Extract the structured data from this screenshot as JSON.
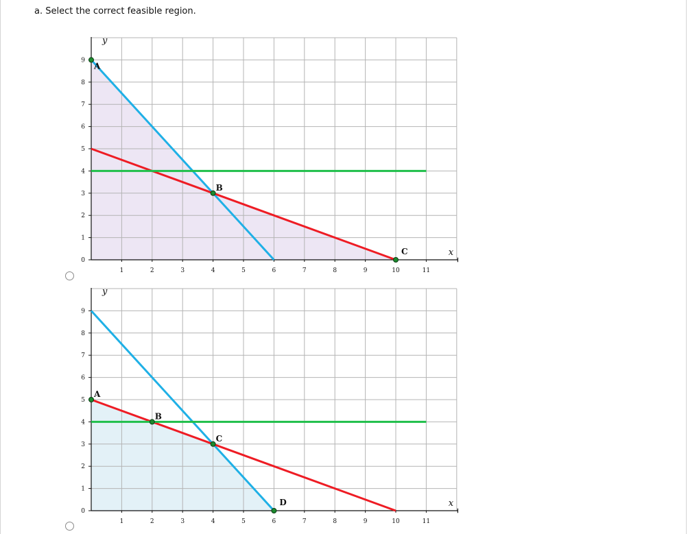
{
  "question": "a. Select the correct feasible region.",
  "colors": {
    "line_blue": "#1fb0e6",
    "line_red": "#ee1c24",
    "line_green": "#1fbf4a",
    "region_option1": "#ede6f4",
    "region_option2": "#e3f1f7",
    "grid": "#b4b4b4",
    "point": "#1c8a2e"
  },
  "options": [
    {
      "id": "option-1",
      "selected": false,
      "chart_data": {
        "type": "line",
        "xlabel": "x",
        "ylabel": "y",
        "xlim": [
          0,
          12
        ],
        "ylim": [
          0,
          10
        ],
        "x_ticks": [
          1,
          2,
          3,
          4,
          5,
          6,
          7,
          8,
          9,
          10,
          11
        ],
        "y_ticks": [
          0,
          1,
          2,
          3,
          4,
          5,
          6,
          7,
          8,
          9
        ],
        "grid": true,
        "series": [
          {
            "color": "#1fb0e6",
            "points": [
              [
                0,
                9
              ],
              [
                6,
                0
              ]
            ]
          },
          {
            "color": "#ee1c24",
            "points": [
              [
                0,
                5
              ],
              [
                10,
                0
              ]
            ]
          },
          {
            "color": "#1fbf4a",
            "points": [
              [
                0,
                4
              ],
              [
                11,
                4
              ]
            ]
          }
        ],
        "shaded_region": {
          "color": "#ede6f4",
          "polygon": [
            [
              0,
              0
            ],
            [
              0,
              9
            ],
            [
              4,
              3
            ],
            [
              10,
              0
            ]
          ]
        },
        "points": [
          {
            "label": "A",
            "x": 0,
            "y": 9
          },
          {
            "label": "B",
            "x": 4,
            "y": 3
          },
          {
            "label": "C",
            "x": 10,
            "y": 0
          }
        ]
      }
    },
    {
      "id": "option-2",
      "selected": false,
      "chart_data": {
        "type": "line",
        "xlabel": "x",
        "ylabel": "y",
        "xlim": [
          0,
          12
        ],
        "ylim": [
          0,
          10
        ],
        "x_ticks": [
          1,
          2,
          3,
          4,
          5,
          6,
          7,
          8,
          9,
          10,
          11
        ],
        "y_ticks": [
          0,
          1,
          2,
          3,
          4,
          5,
          6,
          7,
          8,
          9
        ],
        "grid": true,
        "series": [
          {
            "color": "#1fb0e6",
            "points": [
              [
                0,
                9
              ],
              [
                6,
                0
              ]
            ]
          },
          {
            "color": "#ee1c24",
            "points": [
              [
                0,
                5
              ],
              [
                10,
                0
              ]
            ]
          },
          {
            "color": "#1fbf4a",
            "points": [
              [
                0,
                4
              ],
              [
                11,
                4
              ]
            ]
          }
        ],
        "shaded_region": {
          "color": "#e3f1f7",
          "polygon": [
            [
              0,
              0
            ],
            [
              0,
              5
            ],
            [
              2,
              4
            ],
            [
              4,
              3
            ],
            [
              6,
              0
            ]
          ]
        },
        "points": [
          {
            "label": "A",
            "x": 0,
            "y": 5
          },
          {
            "label": "B",
            "x": 2,
            "y": 4
          },
          {
            "label": "C",
            "x": 4,
            "y": 3
          },
          {
            "label": "D",
            "x": 6,
            "y": 0
          }
        ]
      }
    }
  ]
}
